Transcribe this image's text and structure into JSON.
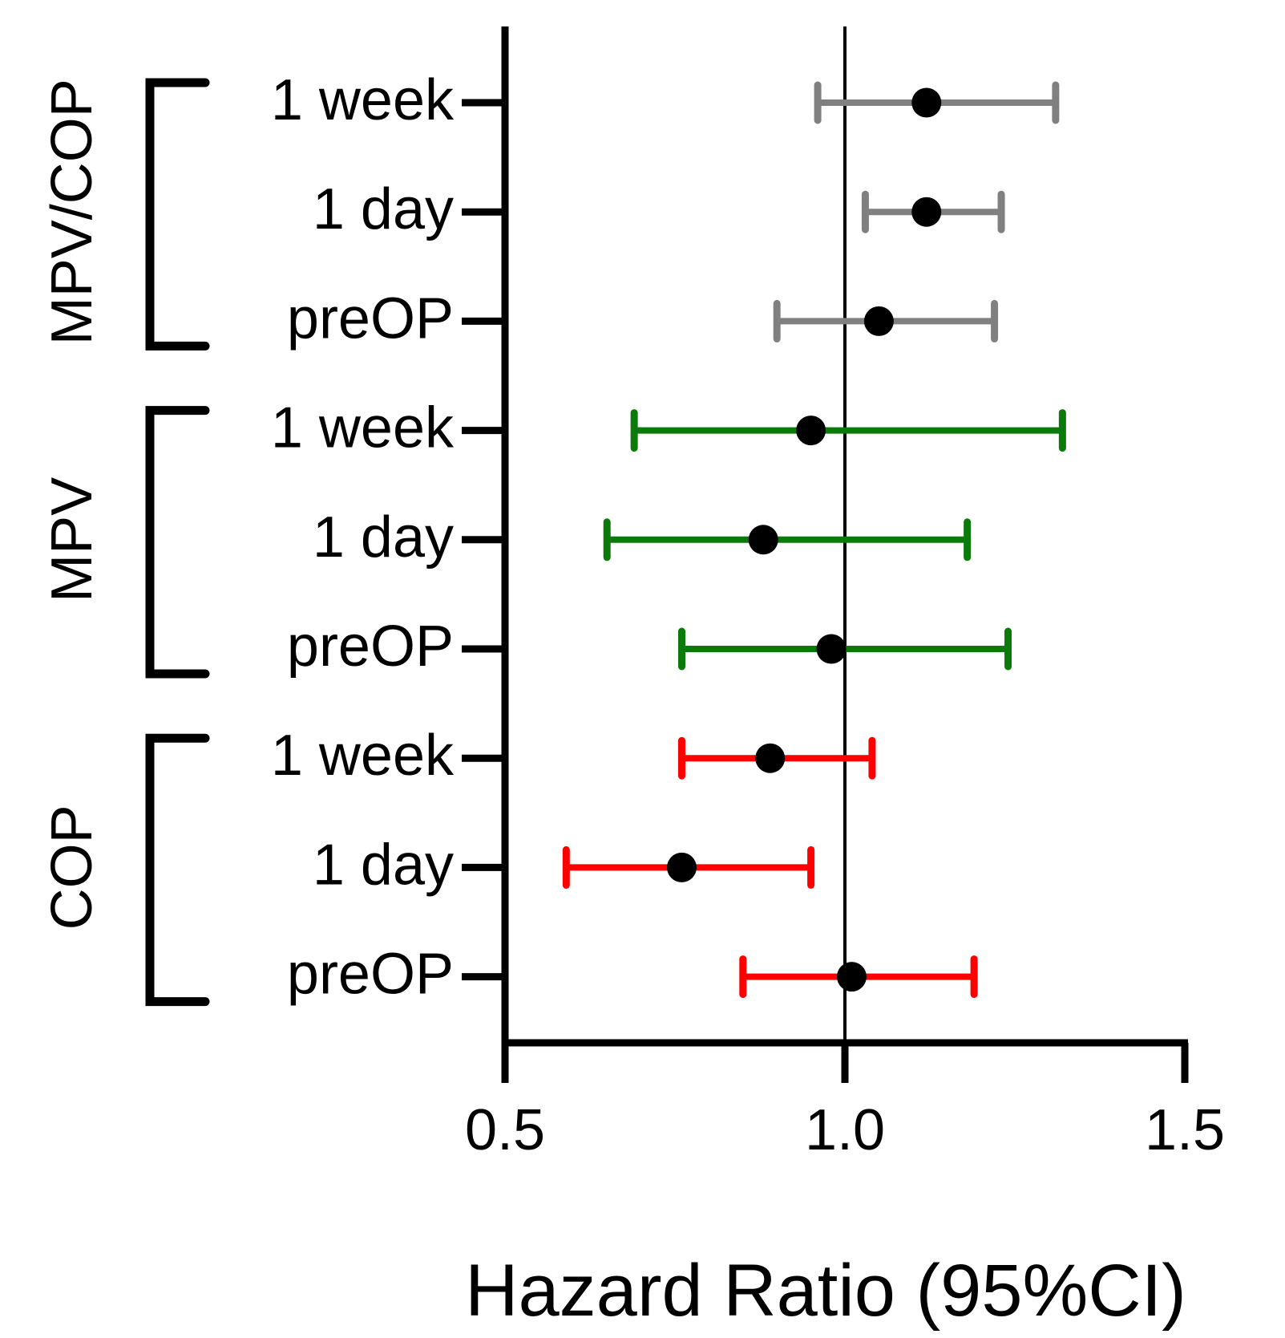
{
  "chart_data": {
    "type": "forest",
    "title": "",
    "xlabel": "Hazard Ratio (95%CI)",
    "xlim": [
      0.5,
      1.5
    ],
    "xticks": [
      "0.5",
      "1.0",
      "1.5"
    ],
    "reference_line": 1.0,
    "groups": [
      {
        "name": "MPV/COP",
        "color": "#808080",
        "rows": [
          {
            "label": "1 week",
            "hr": 1.12,
            "lower": 0.96,
            "upper": 1.31
          },
          {
            "label": "1 day",
            "hr": 1.12,
            "lower": 1.03,
            "upper": 1.23
          },
          {
            "label": "preOP",
            "hr": 1.05,
            "lower": 0.9,
            "upper": 1.22
          }
        ]
      },
      {
        "name": "MPV",
        "color": "#0b7a0b",
        "rows": [
          {
            "label": "1 week",
            "hr": 0.95,
            "lower": 0.69,
            "upper": 1.32
          },
          {
            "label": "1 day",
            "hr": 0.88,
            "lower": 0.65,
            "upper": 1.18
          },
          {
            "label": "preOP",
            "hr": 0.98,
            "lower": 0.76,
            "upper": 1.24
          }
        ]
      },
      {
        "name": "COP",
        "color": "#ff0000",
        "rows": [
          {
            "label": "1 week",
            "hr": 0.89,
            "lower": 0.76,
            "upper": 1.04
          },
          {
            "label": "1 day",
            "hr": 0.76,
            "lower": 0.59,
            "upper": 0.95
          },
          {
            "label": "preOP",
            "hr": 1.01,
            "lower": 0.85,
            "upper": 1.19
          }
        ]
      }
    ]
  }
}
